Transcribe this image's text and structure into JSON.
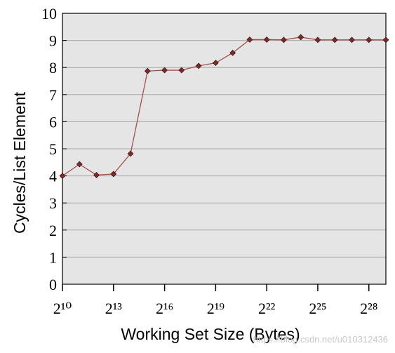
{
  "chart_data": {
    "type": "line",
    "x_label": "Working Set Size (Bytes)",
    "y_label": "Cycles/List Element",
    "watermark": "https://blog.csdn.net/u010312436",
    "x": [
      1024,
      2048,
      4096,
      8192,
      16384,
      32768,
      65536,
      131072,
      262144,
      524288,
      1048576,
      2097152,
      4194304,
      8388608,
      16777216,
      33554432,
      67108864,
      134217728,
      268435456,
      536870912
    ],
    "series": [
      {
        "color": "#a0524c",
        "marker_color": "#7a2a28",
        "values": [
          4.0,
          4.43,
          4.03,
          4.07,
          4.82,
          7.87,
          7.9,
          7.9,
          8.06,
          8.17,
          8.54,
          9.03,
          9.03,
          9.02,
          9.12,
          9.02,
          9.02,
          9.02,
          9.02,
          9.02
        ]
      }
    ],
    "xscale": "log2",
    "xlim": [
      1024,
      536870912
    ],
    "xticks": [
      {
        "value": 1024,
        "label": "2¹⁰"
      },
      {
        "value": 8192,
        "label": "2¹³"
      },
      {
        "value": 65536,
        "label": "2¹⁶"
      },
      {
        "value": 524288,
        "label": "2¹⁹"
      },
      {
        "value": 4194304,
        "label": "2²²"
      },
      {
        "value": 33554432,
        "label": "2²⁵"
      },
      {
        "value": 268435456,
        "label": "2²⁸"
      }
    ],
    "ylim": [
      0,
      10
    ],
    "yticks": [
      0,
      1,
      2,
      3,
      4,
      5,
      6,
      7,
      8,
      9,
      10
    ],
    "grid": true,
    "background": "#e5e5e5"
  }
}
